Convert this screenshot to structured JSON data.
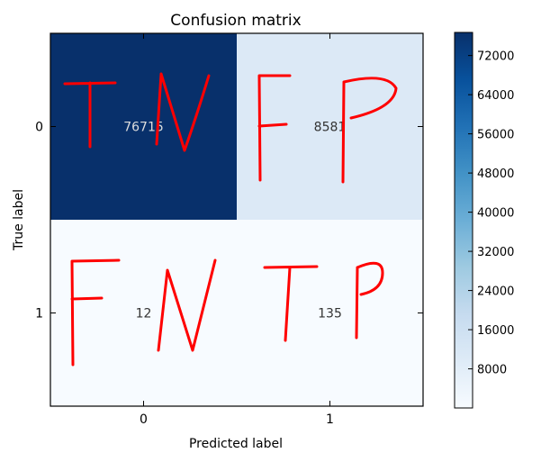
{
  "chart_data": {
    "type": "heatmap",
    "title": "Confusion matrix",
    "xlabel": "Predicted label",
    "ylabel": "True label",
    "x_categories": [
      "0",
      "1"
    ],
    "y_categories": [
      "0",
      "1"
    ],
    "values": [
      [
        76715,
        8581
      ],
      [
        12,
        135
      ]
    ],
    "colormap": "Blues",
    "colorbar": {
      "ticks": [
        8000,
        16000,
        24000,
        32000,
        40000,
        48000,
        56000,
        64000,
        72000
      ],
      "range": [
        12,
        76715
      ]
    },
    "annotations": [
      {
        "row": 0,
        "col": 0,
        "text": "TN"
      },
      {
        "row": 0,
        "col": 1,
        "text": "FP"
      },
      {
        "row": 1,
        "col": 0,
        "text": "FN"
      },
      {
        "row": 1,
        "col": 1,
        "text": "TP"
      }
    ],
    "annotation_color": "#ff0000",
    "colors": {
      "cell_00": "#08306b",
      "cell_01": "#dce9f6",
      "cell_10": "#f7fbff",
      "cell_11": "#f7fbff",
      "text_dark_cell": "#dddddd",
      "text_light_cell": "#333333"
    }
  }
}
